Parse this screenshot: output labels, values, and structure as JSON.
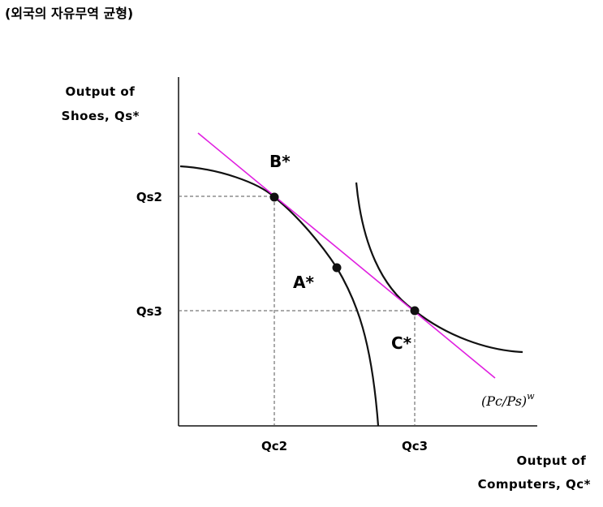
{
  "title": "(외국의 자유무역 균형)",
  "axes": {
    "y_label": [
      "Output of",
      "Shoes, Qs*"
    ],
    "x_label": [
      "Output of",
      "Computers, Qc*"
    ]
  },
  "ticks": {
    "y": [
      "Qs2",
      "Qs3"
    ],
    "x": [
      "Qc2",
      "Qc3"
    ]
  },
  "points": {
    "b": "B*",
    "a": "A*",
    "c": "C*"
  },
  "price_line_label": {
    "base": "(Pc/Ps)",
    "superscript": "w"
  },
  "colors": {
    "price_line": "#e020e0",
    "curves": "#111111",
    "guides": "#555555"
  }
}
